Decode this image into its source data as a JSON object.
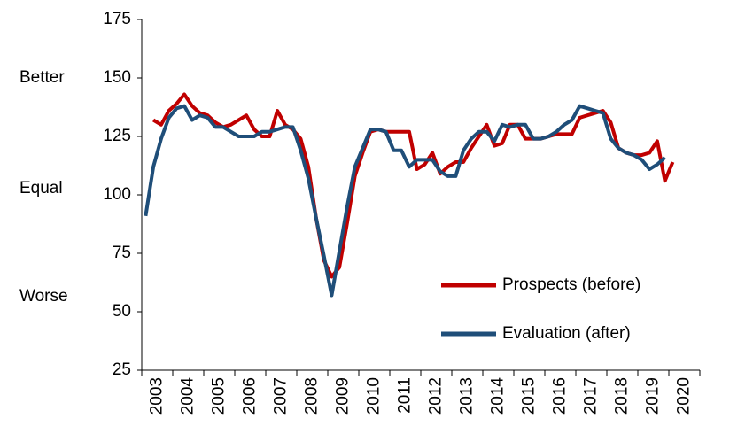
{
  "chart_data": {
    "type": "line",
    "annotations": [
      "Better",
      "Equal",
      "Worse"
    ],
    "categories": [
      "2003",
      null,
      null,
      null,
      "2004",
      null,
      null,
      null,
      "2005",
      null,
      null,
      null,
      "2006",
      null,
      null,
      null,
      "2007",
      null,
      null,
      null,
      "2008",
      null,
      null,
      null,
      "2009",
      null,
      null,
      null,
      "2010",
      null,
      null,
      null,
      "2011",
      null,
      null,
      null,
      "2012",
      null,
      null,
      null,
      "2013",
      null,
      null,
      null,
      "2014",
      null,
      null,
      null,
      "2015",
      null,
      null,
      null,
      "2016",
      null,
      null,
      null,
      "2017",
      null,
      null,
      null,
      "2018",
      null,
      null,
      null,
      "2019",
      null,
      null,
      null,
      "2020",
      null,
      null,
      null
    ],
    "series": [
      {
        "name": "Prospects (before)",
        "color": "#c00000",
        "values": [
          null,
          132,
          130,
          136,
          139,
          143,
          138,
          135,
          134,
          131,
          129,
          130,
          132,
          134,
          128,
          125,
          125,
          136,
          130,
          128,
          124,
          112,
          90,
          72,
          65,
          69,
          88,
          108,
          118,
          127,
          128,
          127,
          127,
          127,
          127,
          111,
          113,
          118,
          109,
          112,
          114,
          114,
          120,
          125,
          130,
          121,
          122,
          130,
          130,
          124,
          124,
          124,
          125,
          126,
          126,
          126,
          133,
          134,
          135,
          136,
          131,
          120,
          118,
          117,
          117,
          118,
          123,
          106,
          114,
          null,
          null,
          null
        ]
      },
      {
        "name": "Evaluation (after)",
        "color": "#1f4e79",
        "values": [
          91,
          112,
          124,
          133,
          137,
          138,
          132,
          134,
          133,
          129,
          129,
          127,
          125,
          125,
          125,
          127,
          127,
          128,
          129,
          129,
          119,
          107,
          90,
          74,
          57,
          76,
          95,
          112,
          120,
          128,
          128,
          127,
          119,
          119,
          112,
          115,
          115,
          115,
          110,
          108,
          108,
          119,
          124,
          127,
          127,
          123,
          130,
          129,
          130,
          130,
          124,
          124,
          125,
          127,
          130,
          132,
          138,
          137,
          136,
          135,
          124,
          120,
          118,
          117,
          115,
          111,
          113,
          116,
          null,
          null,
          null,
          null
        ]
      }
    ],
    "ylim": [
      25,
      175
    ],
    "yticks": [
      25,
      50,
      75,
      100,
      125,
      150,
      175
    ],
    "grid": false,
    "legend": "lower right"
  }
}
